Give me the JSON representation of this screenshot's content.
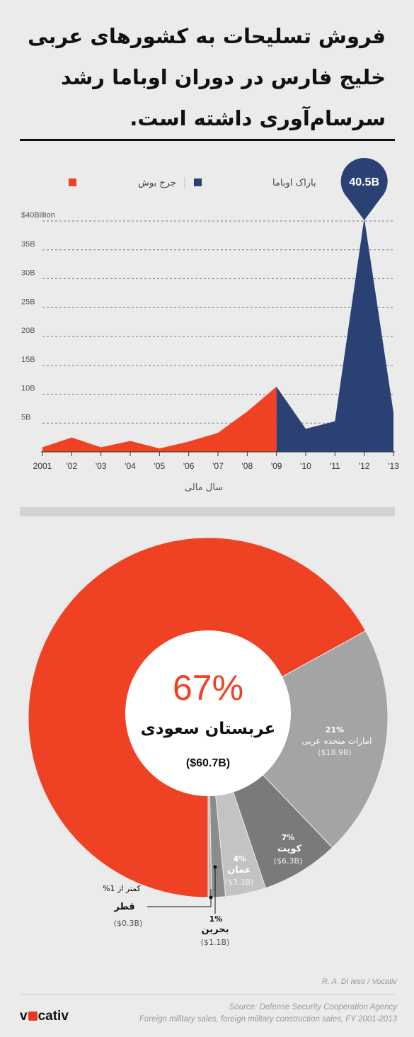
{
  "title": "فروش تسلیحات به کشورهای عربی خلیج فارس در دوران اوباما رشد سرسام‌آوری داشته است.",
  "chart_data": [
    {
      "type": "area",
      "legend": [
        {
          "name": "جرج بوش",
          "color": "#ef4123"
        },
        {
          "name": "باراک اوباما",
          "color": "#2b4173"
        }
      ],
      "legend_position": "top",
      "x_ticks": [
        "2001",
        "'02",
        "'03",
        "'04",
        "'05",
        "'06",
        "'07",
        "'08",
        "'09",
        "'10",
        "'11",
        "'12",
        "'13"
      ],
      "xlabel": "سال مالی",
      "y_ticks": [
        "5B",
        "10B",
        "15B",
        "20B",
        "25B",
        "30B",
        "35B",
        "$40Billion"
      ],
      "ylim": [
        0,
        40
      ],
      "grid": true,
      "series": [
        {
          "name": "جرج بوش",
          "color": "#ef4123",
          "x": [
            2001,
            2002,
            2003,
            2004,
            2005,
            2006,
            2007,
            2008,
            2009
          ],
          "values": [
            0.8,
            2.5,
            0.8,
            1.9,
            0.6,
            1.8,
            3.3,
            7.0,
            11.3
          ]
        },
        {
          "name": "باراک اوباما",
          "color": "#2b4173",
          "x": [
            2009,
            2010,
            2011,
            2012,
            2013
          ],
          "values": [
            11.3,
            4.0,
            5.3,
            40.5,
            6.8
          ]
        }
      ],
      "annotation": {
        "x": 2012,
        "value": 40.5,
        "label": "40.5B",
        "color": "#2b4173"
      }
    },
    {
      "type": "pie",
      "center": {
        "percent": "67%",
        "name": "عربستان سعودی",
        "value": "($60.7B)"
      },
      "slices": [
        {
          "name": "عربستان سعودی",
          "value": 60.7,
          "color": "#ef4123"
        },
        {
          "name": "امارات متحده عربی",
          "value": 18.9,
          "percent": "21%",
          "amount": "($18.9B)",
          "color": "#a4a4a4"
        },
        {
          "name": "کویت",
          "value": 6.3,
          "percent": "7%",
          "amount": "($6.3B)",
          "color": "#7a7a7a"
        },
        {
          "name": "عمان",
          "value": 3.3,
          "percent": "4%",
          "amount": "($3.3B)",
          "color": "#c3c3c3"
        },
        {
          "name": "بحرین",
          "value": 1.1,
          "percent": "1%",
          "amount": "($1.1B)",
          "color": "#8c8c8c"
        },
        {
          "name": "قطر",
          "value": 0.3,
          "percent": "کمتر از 1%",
          "amount": "($0.3B)",
          "color": "#b8b8b8"
        }
      ]
    }
  ],
  "credit": "R. A. Di Ieso / Vocativ",
  "source_line": "Source: Defense Security Cooperation Agency",
  "source_note": "Foreign military sales, foreign military construction sales, FY 2001-2013",
  "logo": {
    "pre": "v",
    "post": "cativ"
  }
}
